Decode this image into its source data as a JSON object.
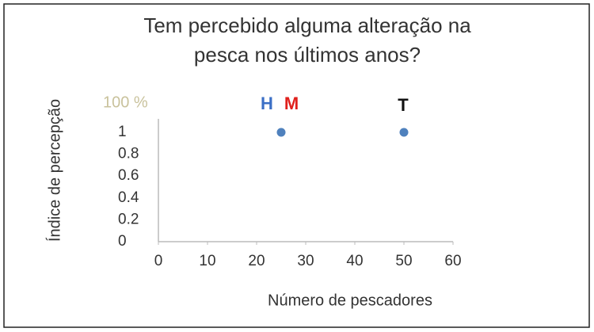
{
  "chart_data": {
    "type": "scatter",
    "title": [
      "Tem percebido alguma alteração na",
      "pesca nos últimos anos?"
    ],
    "x_label": "Número de pescadores",
    "y_label": "Índice de percepção",
    "series": [
      {
        "color": "#4f81bd",
        "x": [
          25,
          50
        ],
        "values": [
          1,
          1
        ]
      }
    ],
    "annotations": [
      {
        "text": "100 %",
        "color": "#c9c29c"
      },
      {
        "text": "H",
        "color": "#3b6fc6"
      },
      {
        "text": "M",
        "color": "#e0201c"
      },
      {
        "text": "T",
        "color": "#111111"
      }
    ],
    "xlim": [
      0,
      60
    ],
    "xticks": [
      0,
      10,
      20,
      30,
      40,
      50,
      60
    ],
    "ylim": [
      0,
      1
    ],
    "yticks": [
      0,
      0.2,
      0.4,
      0.6,
      0.8,
      1
    ],
    "grid": false
  }
}
